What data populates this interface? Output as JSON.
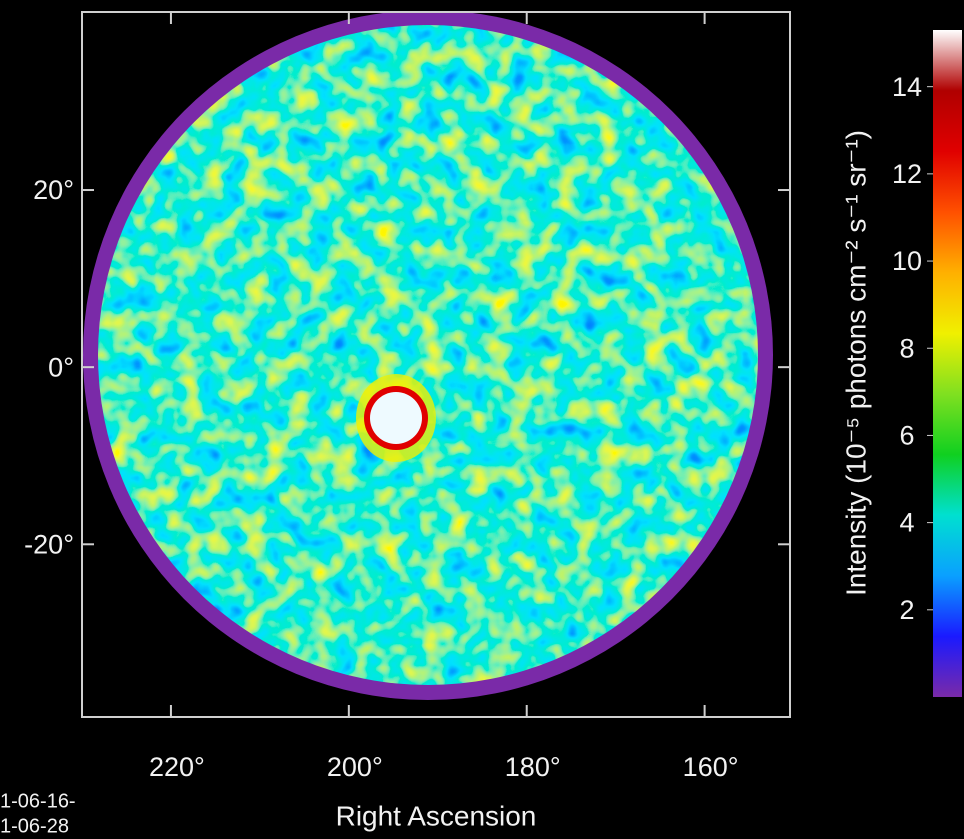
{
  "chart_data": {
    "type": "heatmap",
    "x_label": "Right Ascension",
    "xlim": [
      230,
      150.4
    ],
    "xticks": [
      {
        "value": 220,
        "label": "220°"
      },
      {
        "value": 200,
        "label": "200°"
      },
      {
        "value": 180,
        "label": "180°"
      },
      {
        "value": 160,
        "label": "160°"
      }
    ],
    "ylim": [
      -39.5,
      40.1
    ],
    "yticks": [
      {
        "value": 20,
        "label": "20°"
      },
      {
        "value": 0,
        "label": "0°"
      },
      {
        "value": -20,
        "label": "-20°"
      }
    ],
    "colorbar": {
      "label": "Intensity (10⁻⁵ photons cm⁻² s⁻¹ sr⁻¹)",
      "lim": [
        0,
        15.3
      ],
      "ticks": [
        2,
        4,
        6,
        8,
        10,
        12,
        14
      ],
      "colors": [
        "#7a2aa8",
        "#1a1aff",
        "#0aa0ff",
        "#00e0d0",
        "#10d020",
        "#80e020",
        "#f0f000",
        "#ffb000",
        "#ff5000",
        "#e00000",
        "#b00000",
        "#ffffff"
      ]
    },
    "annotations": [
      "1-06-16-",
      "1-06-28"
    ]
  }
}
